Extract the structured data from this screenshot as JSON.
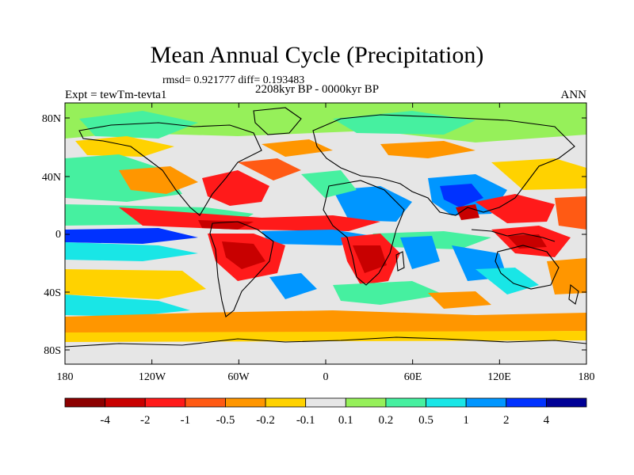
{
  "title": "Mean Annual Cycle (Precipitation)",
  "stats": "rmsd= 0.921777  diff= 0.193483",
  "period": "2208kyr BP - 0000kyr BP",
  "experiment": "Expt = tewTm-tevta1",
  "season": "ANN",
  "background_color": "#e6e6e6",
  "lat_labels": [
    "80N",
    "40N",
    "0",
    "40S",
    "80S"
  ],
  "lon_labels": [
    "180",
    "120W",
    "60W",
    "0",
    "60E",
    "120E",
    "180"
  ],
  "colorbar": {
    "colors": [
      "#8c0000",
      "#c80000",
      "#ff1a1a",
      "#ff5a14",
      "#ff9600",
      "#ffd200",
      "#e6e6e6",
      "#96f05a",
      "#46f0a0",
      "#19e6e6",
      "#0096ff",
      "#0032ff",
      "#000096"
    ],
    "labels": [
      "-4",
      "-2",
      "-1",
      "-0.5",
      "-0.2",
      "-0.1",
      "0.1",
      "0.2",
      "0.5",
      "1",
      "2",
      "4"
    ]
  }
}
